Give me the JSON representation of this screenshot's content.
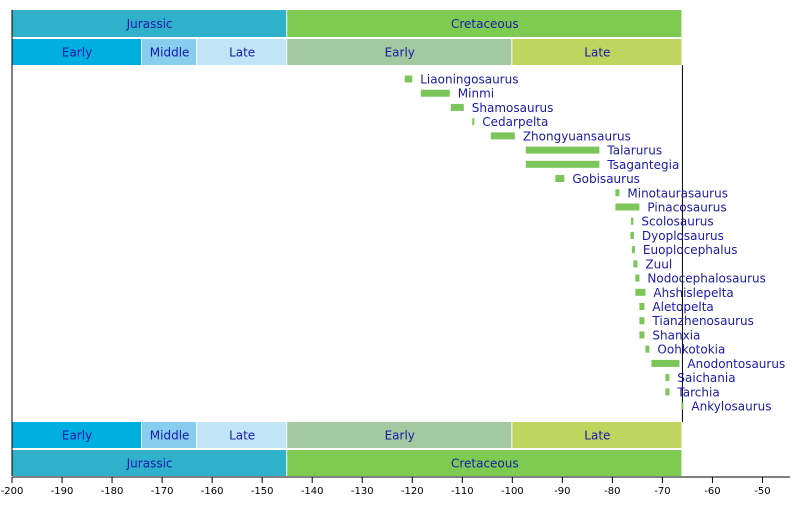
{
  "chart_data": {
    "type": "range-bar",
    "categories": [
      "Liaoningosaurus",
      "Minmi",
      "Shamosaurus",
      "Cedarpelta",
      "Zhongyuansaurus",
      "Talarurus",
      "Tsagantegia",
      "Gobisaurus",
      "Minotaurasaurus",
      "Pinacosaurus",
      "Scolosaurus",
      "Dyoplosaurus",
      "Euoplocephalus",
      "Zuul",
      "Nodocephalosaurus",
      "Ahshislepelta",
      "Aletopelta",
      "Tianzhenosaurus",
      "Shanxia",
      "Oohkotokia",
      "Anodontosaurus",
      "Saichania",
      "Tarchia",
      "Ankylosaurus"
    ],
    "start": [
      -121.5,
      -118.3,
      -112.3,
      -108,
      -104.3,
      -97.3,
      -97.3,
      -91.4,
      -79.4,
      -79.4,
      -76.3,
      -76.4,
      -76.1,
      -75.8,
      -75.4,
      -75.4,
      -74.6,
      -74.6,
      -74.6,
      -73.4,
      -72.2,
      -69.4,
      -69.4,
      -66.2
    ],
    "end": [
      -120,
      -112.5,
      -109.7,
      -107.6,
      -99.5,
      -82.6,
      -82.6,
      -89.6,
      -78.6,
      -74.6,
      -75.8,
      -75.7,
      -75.5,
      -75,
      -74.6,
      -73.4,
      -73.6,
      -73.6,
      -73.6,
      -72.6,
      -66.6,
      -68.6,
      -68.6,
      -65.8
    ],
    "color": "#7cc55a",
    "periods": [
      {
        "name": "Jurassic",
        "start": -200,
        "end": -145,
        "color": "#2fb1cb"
      },
      {
        "name": "Cretaceous",
        "start": -145,
        "end": -66,
        "color": "#7ecb52"
      }
    ],
    "epochs": [
      {
        "name": "Early",
        "start": -200,
        "end": -174,
        "color": "#00aee0"
      },
      {
        "name": "Middle",
        "start": -174,
        "end": -163,
        "color": "#86cdee"
      },
      {
        "name": "Late",
        "start": -163,
        "end": -145,
        "color": "#bfe5f6"
      },
      {
        "name": "Early",
        "start": -145,
        "end": -100,
        "color": "#a3c9a0"
      },
      {
        "name": "Late",
        "start": -100,
        "end": -66,
        "color": "#bfd55e"
      }
    ],
    "xlim": [
      -200,
      -44.5
    ],
    "xticks": [
      -200,
      -190,
      -180,
      -170,
      -160,
      -150,
      -140,
      -130,
      -120,
      -110,
      -100,
      -90,
      -80,
      -70,
      -60,
      -50
    ]
  }
}
